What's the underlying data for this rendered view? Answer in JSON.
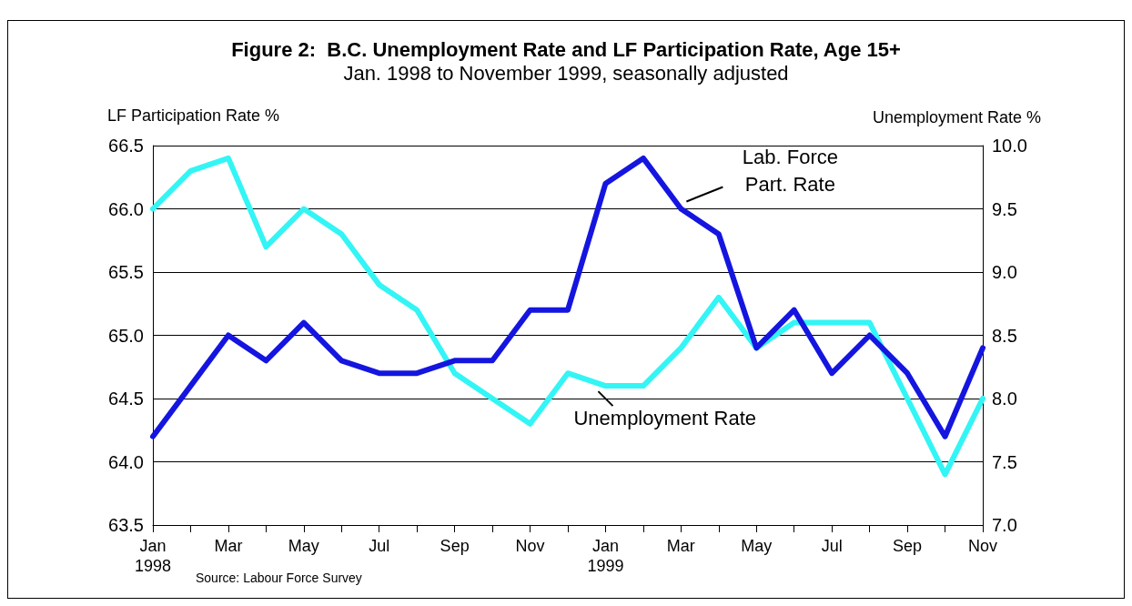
{
  "chart_data": {
    "type": "line",
    "title": "Figure 2:  B.C. Unemployment Rate and LF Participation Rate, Age 15+",
    "subtitle": "Jan. 1998 to November 1999, seasonally adjusted",
    "ylabel": "LF Participation Rate %",
    "y2label": "Unemployment Rate %",
    "categories": [
      "Jan\n1998",
      null,
      "Mar",
      null,
      "May",
      null,
      "Jul",
      null,
      "Sep",
      null,
      "Nov",
      null,
      "Jan\n1999",
      null,
      "Mar",
      null,
      "May",
      null,
      "Jul",
      null,
      "Sep",
      null,
      "Nov"
    ],
    "series": [
      {
        "name": "Lab. Force\nPart. Rate",
        "color": "#1515e0",
        "values": [
          64.2,
          64.6,
          65.0,
          64.8,
          65.1,
          64.8,
          64.7,
          64.7,
          64.8,
          64.8,
          65.2,
          65.2,
          66.2,
          66.4,
          66.0,
          65.8,
          64.9,
          65.2,
          64.7,
          65.0,
          64.7,
          64.2,
          64.9
        ]
      },
      {
        "name": "Unemployment Rate",
        "color": "#33f5f5",
        "axis": "y2",
        "values": [
          9.5,
          9.8,
          9.9,
          9.2,
          9.5,
          9.3,
          8.9,
          8.7,
          8.2,
          8.0,
          7.8,
          8.2,
          8.1,
          8.1,
          8.4,
          8.8,
          8.4,
          8.6,
          8.6,
          8.6,
          8.0,
          7.4,
          8.0
        ]
      }
    ],
    "ylim": [
      63.5,
      66.5
    ],
    "yticks": [
      {
        "value": 63.5,
        "label": "63.5"
      },
      {
        "value": 64,
        "label": "64.0"
      },
      {
        "value": 64.5,
        "label": "64.5"
      },
      {
        "value": 65,
        "label": "65.0"
      },
      {
        "value": 65.5,
        "label": "65.5"
      },
      {
        "value": 66,
        "label": "66.0"
      },
      {
        "value": 66.5,
        "label": "66.5"
      }
    ],
    "y2lim": [
      7,
      10
    ],
    "y2ticks": [
      {
        "value": 7,
        "label": "7.0"
      },
      {
        "value": 7.5,
        "label": "7.5"
      },
      {
        "value": 8,
        "label": "8.0"
      },
      {
        "value": 8.5,
        "label": "8.5"
      },
      {
        "value": 9,
        "label": "9.0"
      },
      {
        "value": 9.5,
        "label": "9.5"
      },
      {
        "value": 10,
        "label": "10.0"
      }
    ],
    "grid": "y",
    "legend": false,
    "marker": "none",
    "line_style": "solid",
    "annotations": [
      "Source: Labour Force Survey"
    ]
  }
}
